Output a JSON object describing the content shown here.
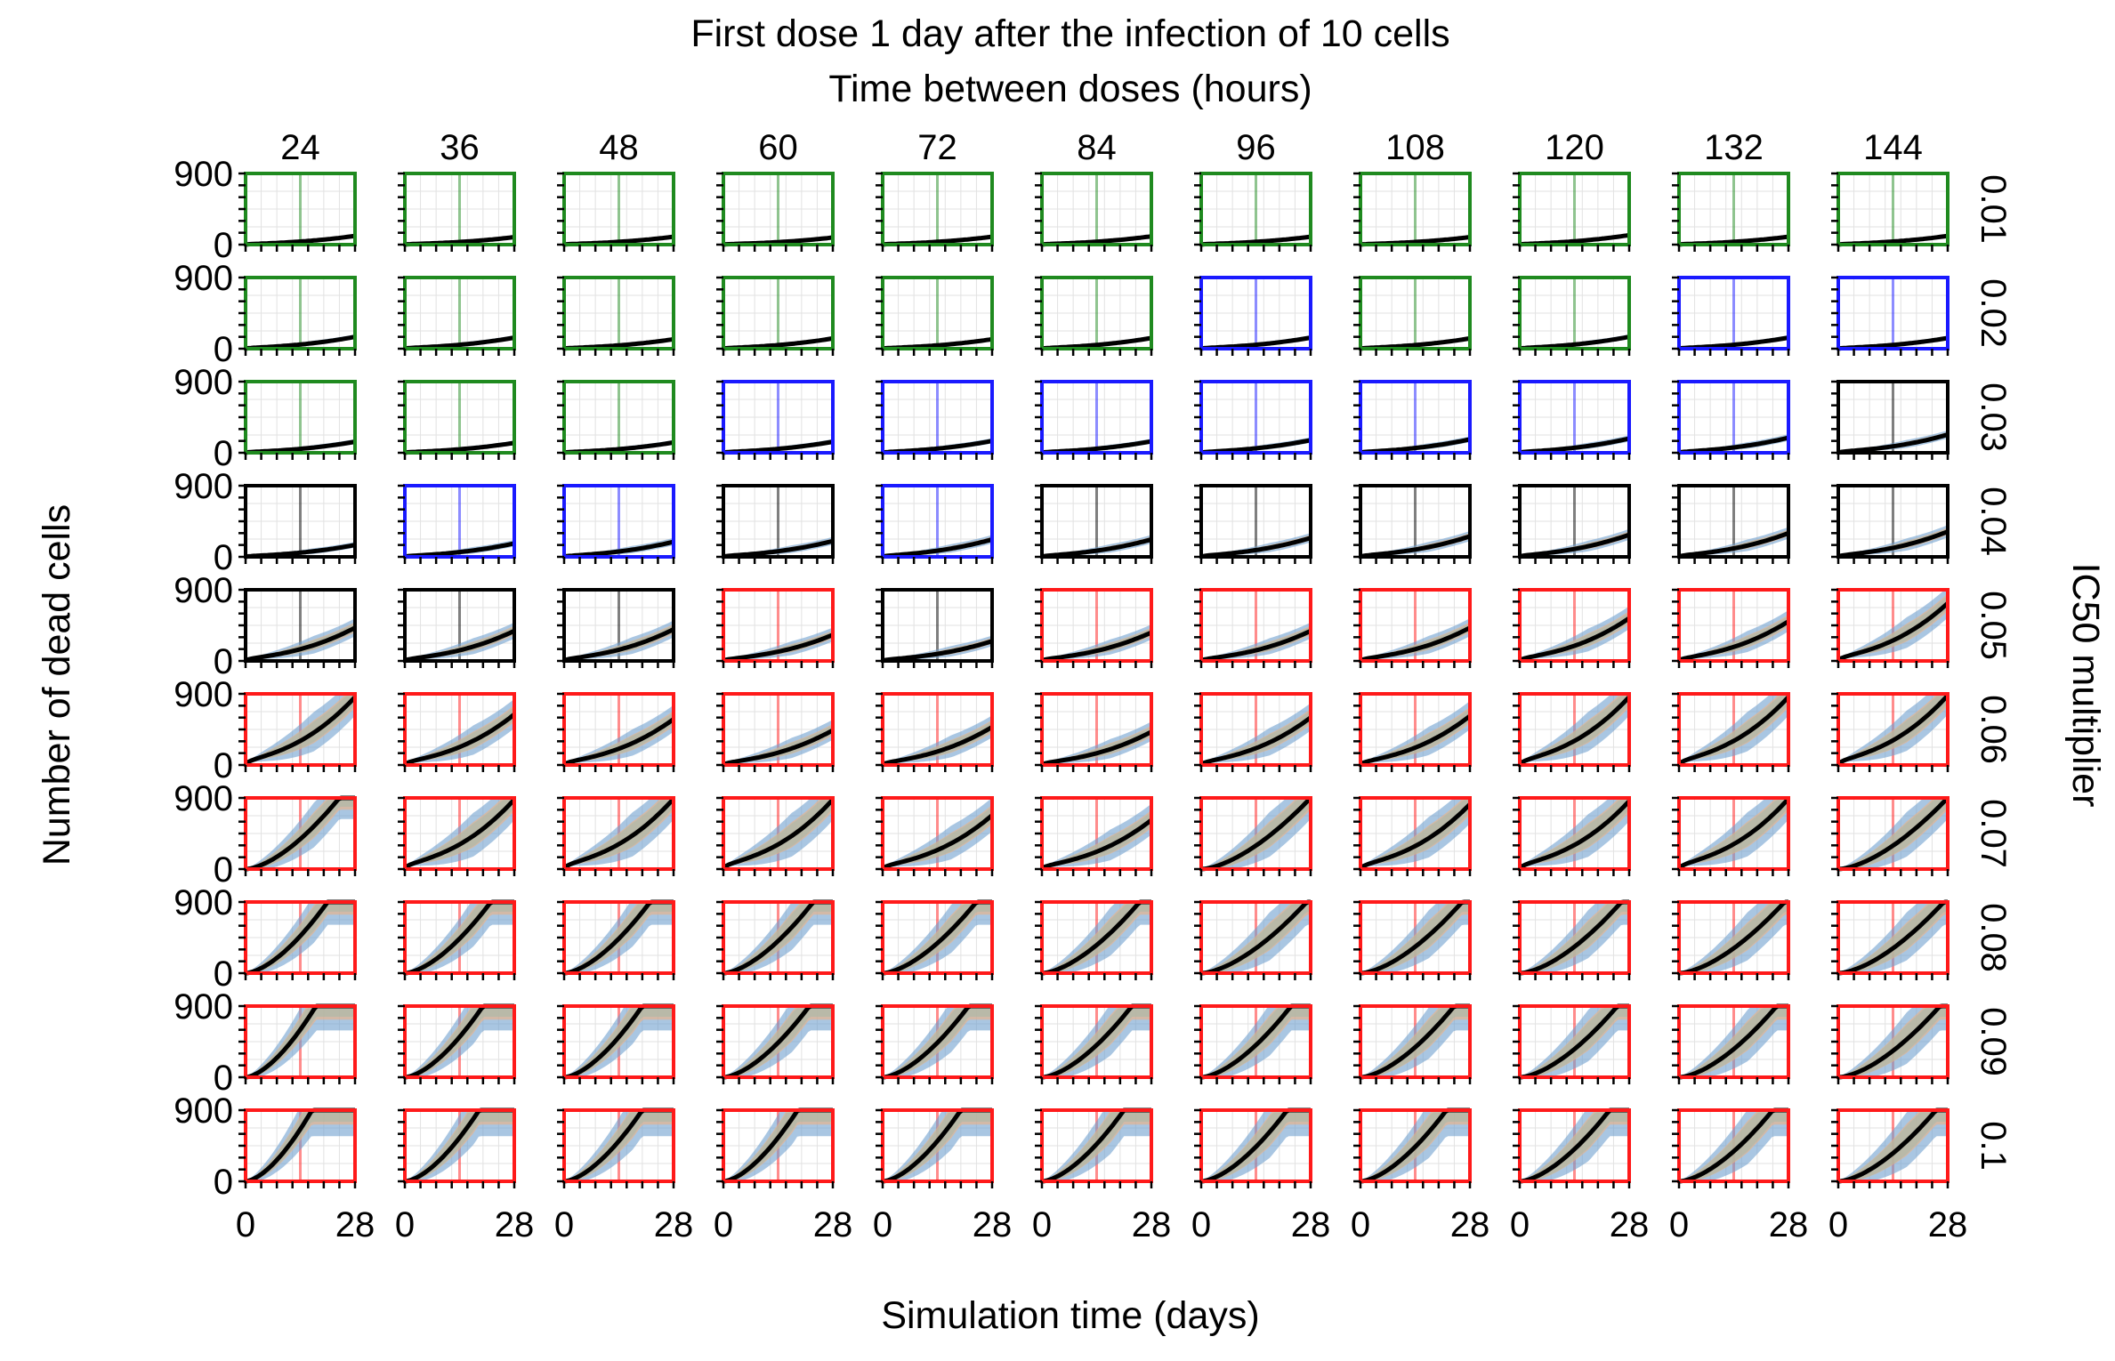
{
  "chart_data": {
    "type": "line",
    "layout": "grid of small multiples, rows = IC50 multiplier, columns = time between doses",
    "title": "First dose 1 day after the infection of 10 cells",
    "subtitle": "Time between doses (hours)",
    "xlabel": "Simulation time (days)",
    "ylabel": "Number of dead cells",
    "right_label": "IC50 multiplier",
    "columns": [
      "24",
      "36",
      "48",
      "60",
      "72",
      "84",
      "96",
      "108",
      "120",
      "132",
      "144"
    ],
    "rows": [
      "0.01",
      "0.02",
      "0.03",
      "0.04",
      "0.05",
      "0.06",
      "0.07",
      "0.08",
      "0.09",
      "0.1"
    ],
    "xlim": [
      0,
      28
    ],
    "ylim": [
      0,
      900
    ],
    "x_ticks": [
      "0",
      "28"
    ],
    "y_ticks": [
      "0",
      "900"
    ],
    "border_colors": {
      "G": "#1f8a1f",
      "B": "#1a1aff",
      "K": "#000000",
      "R": "#ff1a1a"
    },
    "band_colors": {
      "a": "#6fa0cf",
      "b": "#f0b080",
      "c": "#a9b9a8",
      "mean": "#000000"
    },
    "panel_status": [
      [
        "G",
        "G",
        "G",
        "G",
        "G",
        "G",
        "G",
        "G",
        "G",
        "G",
        "G"
      ],
      [
        "G",
        "G",
        "G",
        "G",
        "G",
        "G",
        "B",
        "G",
        "G",
        "B",
        "B"
      ],
      [
        "G",
        "G",
        "G",
        "B",
        "B",
        "B",
        "B",
        "B",
        "B",
        "B",
        "K"
      ],
      [
        "K",
        "B",
        "B",
        "K",
        "B",
        "K",
        "K",
        "K",
        "K",
        "K",
        "K"
      ],
      [
        "K",
        "K",
        "K",
        "R",
        "K",
        "R",
        "R",
        "R",
        "R",
        "R",
        "R"
      ],
      [
        "R",
        "R",
        "R",
        "R",
        "R",
        "R",
        "R",
        "R",
        "R",
        "R",
        "R"
      ],
      [
        "R",
        "R",
        "R",
        "R",
        "R",
        "R",
        "R",
        "R",
        "R",
        "R",
        "R"
      ],
      [
        "R",
        "R",
        "R",
        "R",
        "R",
        "R",
        "R",
        "R",
        "R",
        "R",
        "R"
      ],
      [
        "R",
        "R",
        "R",
        "R",
        "R",
        "R",
        "R",
        "R",
        "R",
        "R",
        "R"
      ],
      [
        "R",
        "R",
        "R",
        "R",
        "R",
        "R",
        "R",
        "R",
        "R",
        "R",
        "R"
      ]
    ],
    "final_dead_cells": [
      [
        110,
        95,
        100,
        90,
        100,
        105,
        100,
        95,
        120,
        100,
        110
      ],
      [
        150,
        140,
        120,
        130,
        120,
        135,
        140,
        130,
        150,
        140,
        135
      ],
      [
        140,
        125,
        130,
        140,
        150,
        145,
        160,
        170,
        180,
        190,
        230
      ],
      [
        150,
        170,
        190,
        200,
        220,
        220,
        240,
        260,
        280,
        300,
        320
      ],
      [
        420,
        380,
        400,
        330,
        250,
        360,
        380,
        420,
        540,
        500,
        730
      ],
      [
        860,
        640,
        580,
        440,
        480,
        420,
        600,
        620,
        860,
        860,
        880
      ],
      [
        900,
        880,
        890,
        880,
        680,
        620,
        900,
        820,
        860,
        890,
        900
      ],
      [
        900,
        900,
        900,
        900,
        900,
        900,
        900,
        900,
        900,
        900,
        900
      ],
      [
        900,
        900,
        900,
        900,
        900,
        900,
        900,
        900,
        900,
        900,
        900
      ],
      [
        900,
        900,
        900,
        900,
        900,
        900,
        900,
        900,
        900,
        900,
        900
      ]
    ],
    "days_to_saturation": [
      [
        null,
        null,
        null,
        null,
        null,
        null,
        null,
        null,
        null,
        null,
        null
      ],
      [
        null,
        null,
        null,
        null,
        null,
        null,
        null,
        null,
        null,
        null,
        null
      ],
      [
        null,
        null,
        null,
        null,
        null,
        null,
        null,
        null,
        null,
        null,
        null
      ],
      [
        null,
        null,
        null,
        null,
        null,
        null,
        null,
        null,
        null,
        null,
        null
      ],
      [
        null,
        null,
        null,
        null,
        null,
        null,
        null,
        null,
        null,
        null,
        null
      ],
      [
        null,
        null,
        null,
        null,
        null,
        null,
        null,
        null,
        null,
        null,
        null
      ],
      [
        24,
        null,
        null,
        null,
        null,
        null,
        28,
        null,
        null,
        null,
        28
      ],
      [
        21,
        22,
        22,
        23,
        24,
        25,
        27,
        26,
        26,
        27,
        27
      ],
      [
        18,
        20,
        20,
        22,
        22,
        23,
        23,
        24,
        25,
        25,
        26
      ],
      [
        17,
        19,
        20,
        19,
        20,
        21,
        22,
        22,
        23,
        24,
        25
      ]
    ]
  }
}
